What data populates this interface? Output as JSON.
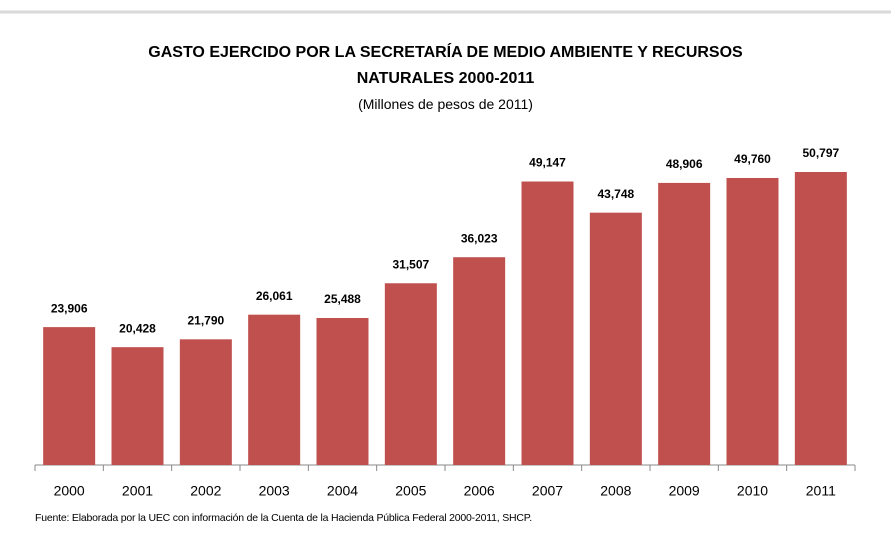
{
  "chart_data": {
    "type": "bar",
    "title": "GASTO EJERCIDO POR LA SECRETARÍA DE MEDIO AMBIENTE Y RECURSOS NATURALES 2000-2011",
    "subtitle": "(Millones de pesos de 2011)",
    "categories": [
      "2000",
      "2001",
      "2002",
      "2003",
      "2004",
      "2005",
      "2006",
      "2007",
      "2008",
      "2009",
      "2010",
      "2011"
    ],
    "values": [
      23906,
      20428,
      21790,
      26061,
      25488,
      31507,
      36023,
      49147,
      43748,
      48906,
      49760,
      50797
    ],
    "value_labels": [
      "23,906",
      "20,428",
      "21,790",
      "26,061",
      "25,488",
      "31,507",
      "36,023",
      "49,147",
      "43,748",
      "48,906",
      "49,760",
      "50,797"
    ],
    "color": "#c0504d",
    "note": "Fuente: Elaborada por la UEC con información de la Cuenta de la Hacienda Pública Federal 2000-2011, SHCP."
  }
}
